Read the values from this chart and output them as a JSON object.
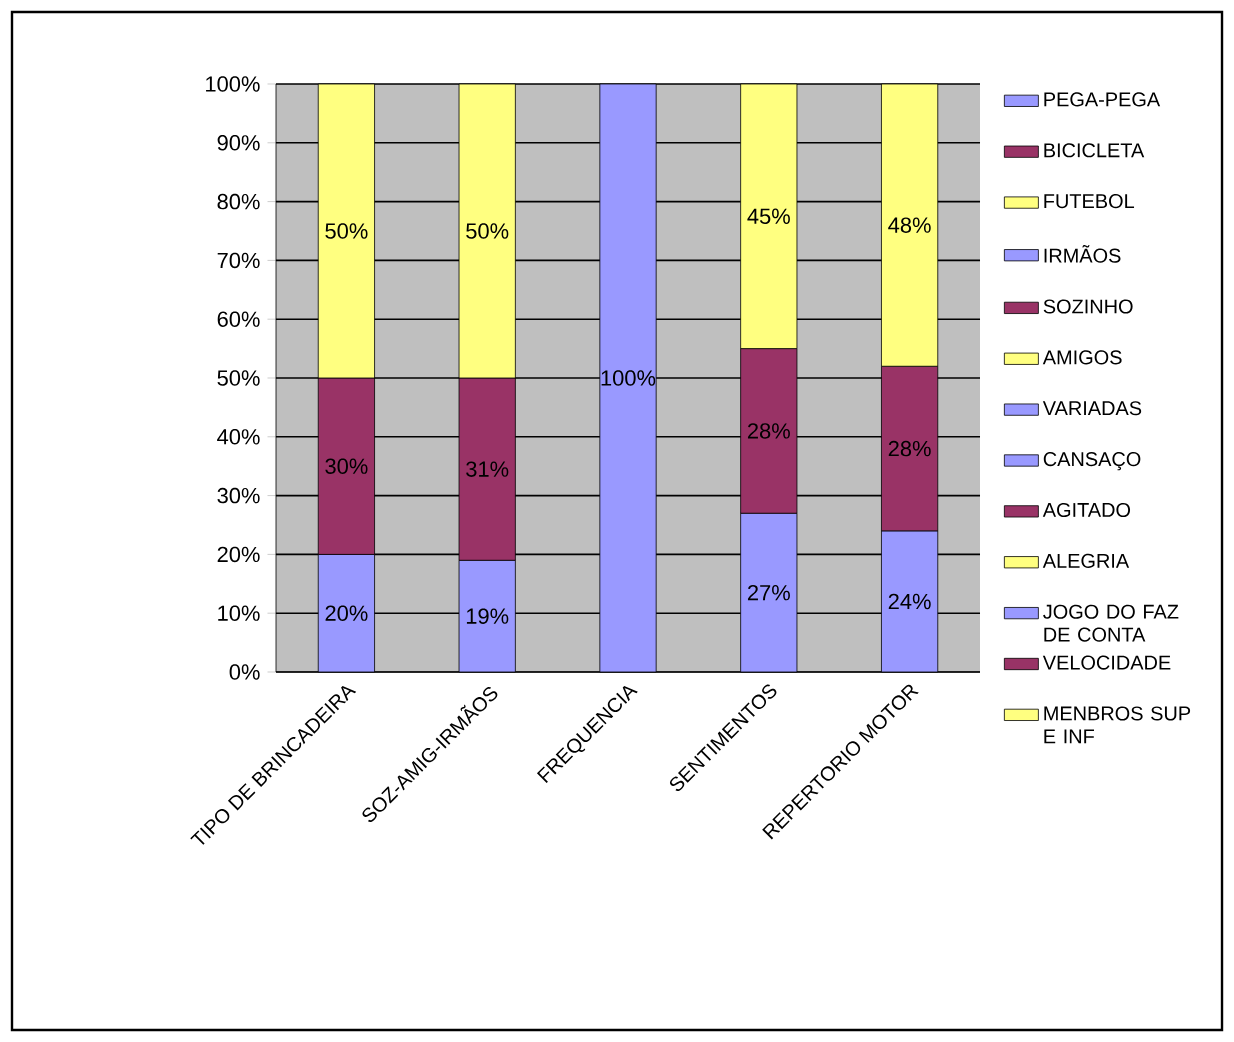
{
  "chart_data": {
    "type": "bar",
    "stacked": true,
    "categories": [
      "TIPO DE BRINCADEIRA",
      "SOZ-AMIG-IRMÃOS",
      "FREQUENCIA",
      "SENTIMENTOS",
      "REPERTORIO MOTOR"
    ],
    "series": [
      {
        "name": "PEGA-PEGA",
        "color": "#9999ff",
        "values": [
          20,
          null,
          null,
          null,
          null
        ],
        "value_labels": [
          "20%",
          null,
          null,
          null,
          null
        ]
      },
      {
        "name": "BICICLETA",
        "color": "#993366",
        "values": [
          30,
          null,
          null,
          null,
          null
        ],
        "value_labels": [
          "30%",
          null,
          null,
          null,
          null
        ]
      },
      {
        "name": "FUTEBOL",
        "color": "#ffff80",
        "values": [
          50,
          null,
          null,
          null,
          null
        ],
        "value_labels": [
          "50%",
          null,
          null,
          null,
          null
        ]
      },
      {
        "name": "IRMÃOS",
        "color": "#9999ff",
        "values": [
          null,
          19,
          null,
          null,
          null
        ],
        "value_labels": [
          null,
          "19%",
          null,
          null,
          null
        ]
      },
      {
        "name": "SOZINHO",
        "color": "#993366",
        "values": [
          null,
          31,
          null,
          null,
          null
        ],
        "value_labels": [
          null,
          "31%",
          null,
          null,
          null
        ]
      },
      {
        "name": "AMIGOS",
        "color": "#ffff80",
        "values": [
          null,
          50,
          null,
          null,
          null
        ],
        "value_labels": [
          null,
          "50%",
          null,
          null,
          null
        ]
      },
      {
        "name": "VARIADAS",
        "color": "#9999ff",
        "values": [
          null,
          null,
          100,
          null,
          null
        ],
        "value_labels": [
          null,
          null,
          "100%",
          null,
          null
        ]
      },
      {
        "name": "CANSAÇO",
        "color": "#9999ff",
        "values": [
          null,
          null,
          null,
          27,
          null
        ],
        "value_labels": [
          null,
          null,
          null,
          "27%",
          null
        ]
      },
      {
        "name": "AGITADO",
        "color": "#993366",
        "values": [
          null,
          null,
          null,
          28,
          null
        ],
        "value_labels": [
          null,
          null,
          null,
          "28%",
          null
        ]
      },
      {
        "name": "ALEGRIA",
        "color": "#ffff80",
        "values": [
          null,
          null,
          null,
          45,
          null
        ],
        "value_labels": [
          null,
          null,
          null,
          "45%",
          null
        ]
      },
      {
        "name": "JOGO DO FAZ DE CONTA",
        "color": "#9999ff",
        "values": [
          null,
          null,
          null,
          null,
          24
        ],
        "value_labels": [
          null,
          null,
          null,
          null,
          "24%"
        ]
      },
      {
        "name": "VELOCIDADE",
        "color": "#993366",
        "values": [
          null,
          null,
          null,
          null,
          28
        ],
        "value_labels": [
          null,
          null,
          null,
          null,
          "28%"
        ]
      },
      {
        "name": "MENBROS SUP E INF",
        "color": "#ffff80",
        "values": [
          null,
          null,
          null,
          null,
          48
        ],
        "value_labels": [
          null,
          null,
          null,
          null,
          "48%"
        ]
      }
    ],
    "ylim": [
      0,
      100
    ],
    "yticks": [
      {
        "value": 0,
        "label": "0%"
      },
      {
        "value": 10,
        "label": "10%"
      },
      {
        "value": 20,
        "label": "20%"
      },
      {
        "value": 30,
        "label": "30%"
      },
      {
        "value": 40,
        "label": "40%"
      },
      {
        "value": 50,
        "label": "50%"
      },
      {
        "value": 60,
        "label": "60%"
      },
      {
        "value": 70,
        "label": "70%"
      },
      {
        "value": 80,
        "label": "80%"
      },
      {
        "value": 90,
        "label": "90%"
      },
      {
        "value": 100,
        "label": "100%"
      }
    ],
    "grid": "y",
    "legend": "right"
  }
}
